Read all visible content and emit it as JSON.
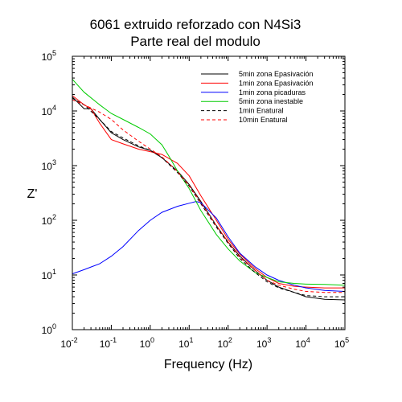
{
  "chart_data": {
    "type": "line",
    "title_line1": "6061 extruido reforzado con N4Si3",
    "title_line2": "Parte real del modulo",
    "xlabel": "Frequency (Hz)",
    "ylabel": "Z'",
    "x_scale": "log",
    "y_scale": "log",
    "xlim": [
      0.01,
      100000
    ],
    "ylim": [
      1,
      100000
    ],
    "x_ticks": [
      {
        "value": 0.01,
        "base": "10",
        "exp": "-2"
      },
      {
        "value": 0.1,
        "base": "10",
        "exp": "-1"
      },
      {
        "value": 1,
        "base": "10",
        "exp": "0"
      },
      {
        "value": 10,
        "base": "10",
        "exp": "1"
      },
      {
        "value": 100,
        "base": "10",
        "exp": "2"
      },
      {
        "value": 1000,
        "base": "10",
        "exp": "3"
      },
      {
        "value": 10000,
        "base": "10",
        "exp": "4"
      },
      {
        "value": 100000,
        "base": "10",
        "exp": "5"
      }
    ],
    "y_ticks": [
      {
        "value": 1,
        "base": "10",
        "exp": "0"
      },
      {
        "value": 10,
        "base": "10",
        "exp": "1"
      },
      {
        "value": 100,
        "base": "10",
        "exp": "2"
      },
      {
        "value": 1000,
        "base": "10",
        "exp": "3"
      },
      {
        "value": 10000,
        "base": "10",
        "exp": "4"
      },
      {
        "value": 100000,
        "base": "10",
        "exp": "5"
      }
    ],
    "grid": false,
    "legend_position": "top-right",
    "series": [
      {
        "name": "5min zona Epasivación",
        "color": "#000000",
        "dash": "solid",
        "x": [
          0.01,
          0.02,
          0.03,
          0.05,
          0.1,
          0.2,
          0.5,
          1,
          2,
          5,
          10,
          20,
          50,
          100,
          200,
          500,
          1000,
          2000,
          5000,
          10000,
          30000,
          100000
        ],
        "y": [
          18000,
          11000,
          11000,
          7000,
          4000,
          3000,
          2200,
          1900,
          1400,
          800,
          450,
          220,
          80,
          40,
          22,
          12,
          8,
          6,
          4.8,
          4.0,
          3.6,
          3.5
        ]
      },
      {
        "name": "1min zona Epasivación",
        "color": "#ff0000",
        "dash": "solid",
        "x": [
          0.01,
          0.02,
          0.03,
          0.05,
          0.1,
          0.2,
          0.5,
          1,
          2,
          5,
          10,
          20,
          50,
          100,
          200,
          500,
          1000,
          2000,
          5000,
          10000,
          30000,
          100000
        ],
        "y": [
          19000,
          13000,
          11000,
          6000,
          3000,
          2500,
          2000,
          1800,
          1600,
          1100,
          650,
          280,
          100,
          45,
          24,
          13,
          9,
          7,
          6.2,
          6.0,
          5.8,
          5.8
        ]
      },
      {
        "name": "1min zona picaduras",
        "color": "#0000ff",
        "dash": "solid",
        "x": [
          0.01,
          0.02,
          0.03,
          0.05,
          0.1,
          0.2,
          0.5,
          1,
          2,
          5,
          10,
          15,
          20,
          50,
          100,
          200,
          500,
          1000,
          2000,
          5000,
          10000,
          30000,
          100000
        ],
        "y": [
          10.5,
          12.5,
          14,
          16,
          22,
          33,
          65,
          100,
          140,
          180,
          205,
          220,
          210,
          110,
          50,
          25,
          14,
          10,
          8,
          6.5,
          5.8,
          5.2,
          5.0
        ]
      },
      {
        "name": "5min zona inestable",
        "color": "#00cc00",
        "dash": "solid",
        "x": [
          0.01,
          0.02,
          0.05,
          0.1,
          0.2,
          0.5,
          1,
          2,
          3,
          5,
          10,
          20,
          50,
          100,
          200,
          500,
          1000,
          2000,
          5000,
          10000,
          30000,
          100000
        ],
        "y": [
          38000,
          22000,
          13000,
          9000,
          7000,
          5000,
          3800,
          2400,
          1500,
          800,
          380,
          150,
          55,
          30,
          18,
          11,
          9,
          7.5,
          7,
          6.8,
          6.7,
          6.5
        ]
      },
      {
        "name": "1min Enatural",
        "color": "#000000",
        "dash": "dashed",
        "x": [
          0.01,
          0.02,
          0.05,
          0.1,
          0.2,
          0.5,
          1,
          2,
          5,
          10,
          20,
          50,
          100,
          200,
          500,
          1000,
          2000,
          5000,
          10000,
          30000,
          100000
        ],
        "y": [
          17000,
          13000,
          7000,
          4200,
          3200,
          2300,
          1900,
          1400,
          750,
          420,
          200,
          75,
          38,
          20,
          11,
          7.5,
          5.8,
          4.8,
          4.2,
          4.0,
          4.0
        ]
      },
      {
        "name": "10min Enatural",
        "color": "#ff0000",
        "dash": "dashed",
        "x": [
          0.01,
          0.02,
          0.05,
          0.1,
          0.2,
          0.5,
          1,
          2,
          5,
          10,
          20,
          50,
          100,
          200,
          500,
          1000,
          2000,
          5000,
          10000,
          30000,
          100000
        ],
        "y": [
          16000,
          13000,
          9500,
          7000,
          4500,
          2800,
          2000,
          1450,
          780,
          430,
          210,
          80,
          40,
          21,
          12,
          8,
          6.5,
          5.5,
          5.0,
          4.8,
          4.8
        ]
      }
    ]
  }
}
